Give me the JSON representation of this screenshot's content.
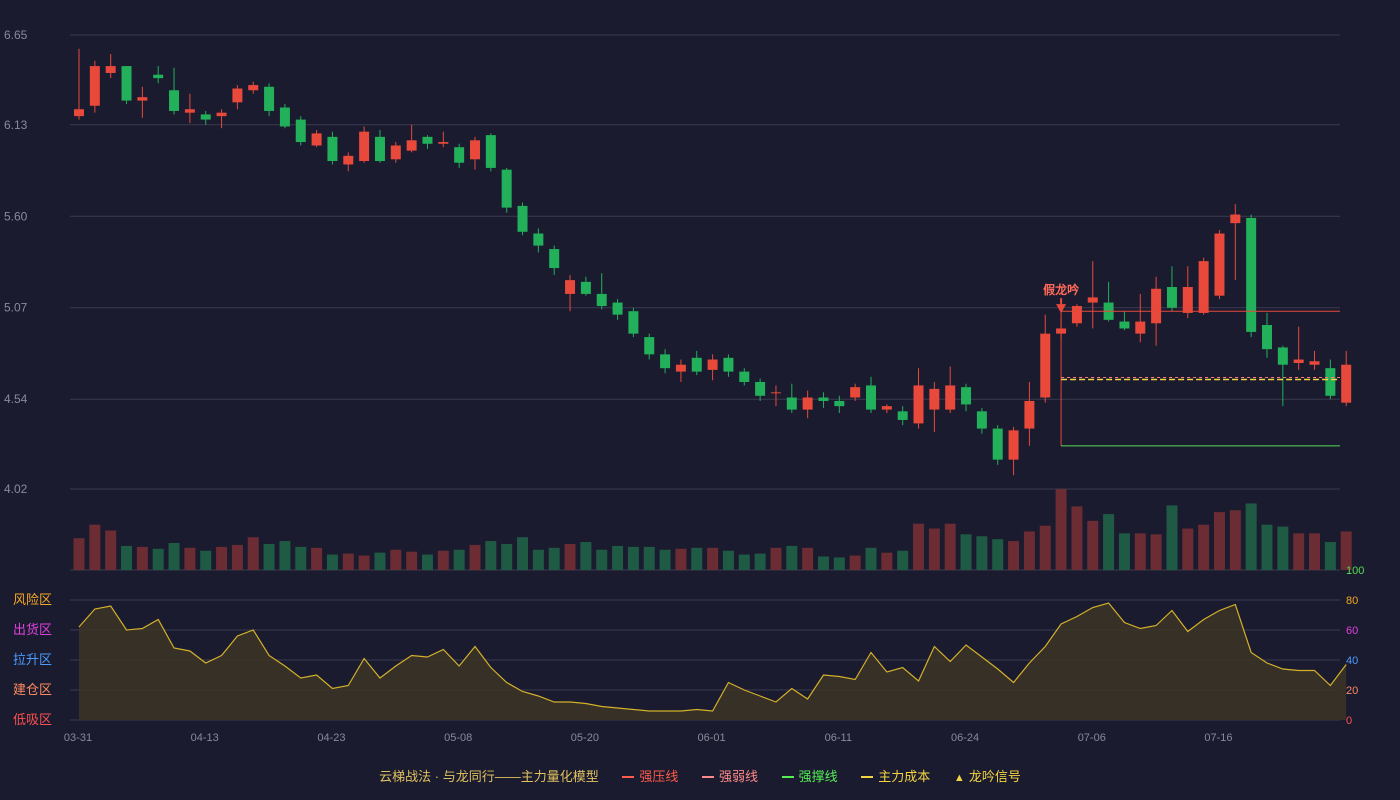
{
  "colors": {
    "background": "#1a1b2e",
    "up": "#e8493a",
    "down": "#22b05a",
    "up_volume": "#6b2c34",
    "down_volume": "#1f5a45",
    "grid": "#3a3b50",
    "axis_text": "#8a8a9a",
    "pressure_line": "#e8493a",
    "weak_line": "#ff7a7a",
    "support_line": "#55dd55",
    "cost_line": "#f5d442",
    "osc_line": "#d4b02a",
    "osc_fill": "#3a3326"
  },
  "chart_data": [
    {
      "type": "candlestick",
      "name": "price",
      "y_ticks": [
        "6.65",
        "6.13",
        "5.60",
        "5.07",
        "4.54",
        "4.02"
      ],
      "ylim": [
        4.02,
        6.65
      ],
      "x_labels": [
        "03-31",
        "04-13",
        "04-23",
        "05-08",
        "05-20",
        "06-01",
        "06-11",
        "06-24",
        "07-06",
        "07-16"
      ],
      "x_label_index": [
        0,
        8,
        16,
        24,
        32,
        40,
        48,
        56,
        64,
        72
      ],
      "ohlc": [
        [
          6.18,
          6.22,
          6.16,
          6.57
        ],
        [
          6.24,
          6.47,
          6.2,
          6.5
        ],
        [
          6.43,
          6.47,
          6.4,
          6.54
        ],
        [
          6.47,
          6.27,
          6.25,
          6.47
        ],
        [
          6.27,
          6.29,
          6.17,
          6.35
        ],
        [
          6.42,
          6.4,
          6.37,
          6.47
        ],
        [
          6.33,
          6.21,
          6.19,
          6.46
        ],
        [
          6.2,
          6.22,
          6.14,
          6.31
        ],
        [
          6.19,
          6.16,
          6.13,
          6.21
        ],
        [
          6.18,
          6.2,
          6.11,
          6.22
        ],
        [
          6.26,
          6.34,
          6.22,
          6.36
        ],
        [
          6.33,
          6.36,
          6.31,
          6.38
        ],
        [
          6.35,
          6.21,
          6.18,
          6.37
        ],
        [
          6.23,
          6.12,
          6.11,
          6.25
        ],
        [
          6.16,
          6.03,
          6.01,
          6.18
        ],
        [
          6.01,
          6.08,
          6.0,
          6.1
        ],
        [
          6.06,
          5.92,
          5.9,
          6.09
        ],
        [
          5.9,
          5.95,
          5.86,
          5.97
        ],
        [
          5.92,
          6.09,
          5.91,
          6.12
        ],
        [
          6.06,
          5.92,
          5.91,
          6.1
        ],
        [
          5.93,
          6.01,
          5.91,
          6.03
        ],
        [
          5.98,
          6.04,
          5.97,
          6.13
        ],
        [
          6.06,
          6.02,
          5.99,
          6.07
        ],
        [
          6.02,
          6.03,
          6.0,
          6.09
        ],
        [
          6.0,
          5.91,
          5.88,
          6.02
        ],
        [
          5.93,
          6.04,
          5.87,
          6.06
        ],
        [
          6.07,
          5.88,
          5.86,
          6.08
        ],
        [
          5.87,
          5.65,
          5.62,
          5.88
        ],
        [
          5.66,
          5.51,
          5.49,
          5.68
        ],
        [
          5.5,
          5.43,
          5.39,
          5.53
        ],
        [
          5.41,
          5.3,
          5.26,
          5.43
        ],
        [
          5.15,
          5.23,
          5.05,
          5.26
        ],
        [
          5.22,
          5.15,
          5.14,
          5.25
        ],
        [
          5.15,
          5.08,
          5.06,
          5.27
        ],
        [
          5.1,
          5.03,
          5.0,
          5.12
        ],
        [
          5.05,
          4.92,
          4.9,
          5.07
        ],
        [
          4.9,
          4.8,
          4.77,
          4.92
        ],
        [
          4.8,
          4.72,
          4.69,
          4.83
        ],
        [
          4.7,
          4.74,
          4.64,
          4.77
        ],
        [
          4.78,
          4.7,
          4.68,
          4.82
        ],
        [
          4.71,
          4.77,
          4.65,
          4.8
        ],
        [
          4.78,
          4.7,
          4.67,
          4.8
        ],
        [
          4.7,
          4.64,
          4.62,
          4.72
        ],
        [
          4.64,
          4.56,
          4.53,
          4.66
        ],
        [
          4.58,
          4.58,
          4.5,
          4.62
        ],
        [
          4.55,
          4.48,
          4.46,
          4.63
        ],
        [
          4.48,
          4.55,
          4.43,
          4.59
        ],
        [
          4.55,
          4.53,
          4.49,
          4.58
        ],
        [
          4.53,
          4.5,
          4.46,
          4.56
        ],
        [
          4.55,
          4.61,
          4.53,
          4.63
        ],
        [
          4.62,
          4.48,
          4.46,
          4.67
        ],
        [
          4.48,
          4.5,
          4.46,
          4.51
        ],
        [
          4.47,
          4.42,
          4.39,
          4.5
        ],
        [
          4.4,
          4.62,
          4.37,
          4.72
        ],
        [
          4.48,
          4.6,
          4.35,
          4.64
        ],
        [
          4.48,
          4.62,
          4.46,
          4.73
        ],
        [
          4.61,
          4.51,
          4.47,
          4.63
        ],
        [
          4.47,
          4.37,
          4.34,
          4.49
        ],
        [
          4.37,
          4.19,
          4.16,
          4.39
        ],
        [
          4.19,
          4.36,
          4.1,
          4.38
        ],
        [
          4.37,
          4.53,
          4.27,
          4.64
        ],
        [
          4.55,
          4.92,
          4.52,
          5.03
        ],
        [
          4.92,
          4.95,
          4.89,
          5.01
        ],
        [
          4.98,
          5.08,
          4.96,
          5.09
        ],
        [
          5.1,
          5.13,
          4.95,
          5.34
        ],
        [
          5.1,
          5.0,
          4.99,
          5.22
        ],
        [
          4.99,
          4.95,
          4.94,
          5.05
        ],
        [
          4.92,
          4.99,
          4.87,
          5.15
        ],
        [
          4.98,
          5.18,
          4.85,
          5.25
        ],
        [
          5.19,
          5.07,
          5.05,
          5.31
        ],
        [
          5.04,
          5.19,
          5.01,
          5.31
        ],
        [
          5.04,
          5.34,
          5.03,
          5.36
        ],
        [
          5.14,
          5.5,
          5.12,
          5.52
        ],
        [
          5.56,
          5.61,
          5.23,
          5.67
        ],
        [
          5.59,
          4.93,
          4.9,
          5.61
        ],
        [
          4.97,
          4.83,
          4.78,
          5.04
        ],
        [
          4.84,
          4.74,
          4.5,
          4.85
        ],
        [
          4.75,
          4.77,
          4.71,
          4.96
        ],
        [
          4.74,
          4.76,
          4.71,
          4.82
        ],
        [
          4.72,
          4.56,
          4.54,
          4.77
        ],
        [
          4.52,
          4.74,
          4.5,
          4.82
        ]
      ],
      "volume": [
        33,
        47,
        41,
        25,
        24,
        22,
        28,
        23,
        20,
        24,
        26,
        34,
        27,
        30,
        24,
        23,
        16,
        17,
        15,
        18,
        21,
        19,
        16,
        20,
        21,
        26,
        30,
        27,
        34,
        21,
        23,
        27,
        29,
        21,
        25,
        24,
        24,
        21,
        22,
        23,
        23,
        20,
        16,
        17,
        23,
        25,
        23,
        14,
        13,
        15,
        23,
        18,
        20,
        48,
        43,
        48,
        37,
        35,
        32,
        30,
        40,
        46,
        84,
        66,
        51,
        58,
        38,
        38,
        37,
        67,
        43,
        47,
        60,
        62,
        69,
        47,
        45,
        38,
        38,
        29,
        40
      ],
      "volume_max": 84,
      "lines": {
        "pressure": {
          "value": 5.05,
          "from_index": 62
        },
        "support": {
          "value": 4.27,
          "from_index": 62
        },
        "cost": {
          "value": 4.66,
          "from_index": 62
        },
        "weak": {
          "value": 4.66,
          "from_index": 62
        }
      },
      "signal": {
        "index": 62,
        "label": "假龙吟"
      }
    },
    {
      "type": "area",
      "name": "oscillator",
      "y_ticks": [
        "100",
        "80",
        "60",
        "40",
        "20",
        "0"
      ],
      "y_tick_colors": [
        "#55dd55",
        "#f5a623",
        "#e040e0",
        "#4a9cff",
        "#ff8a60",
        "#ff5050"
      ],
      "zones": [
        "风险区",
        "出货区",
        "拉升区",
        "建仓区",
        "低吸区"
      ],
      "zone_colors": [
        "#f5a623",
        "#e040e0",
        "#4a9cff",
        "#ff8a60",
        "#ff5050"
      ],
      "ylim": [
        0,
        100
      ],
      "values": [
        62,
        74,
        76,
        60,
        61,
        67,
        48,
        46,
        38,
        43,
        56,
        60,
        43,
        36,
        28,
        30,
        21,
        23,
        41,
        28,
        36,
        43,
        42,
        47,
        36,
        49,
        35,
        25,
        19,
        16,
        12,
        12,
        11,
        9,
        8,
        7,
        6,
        6,
        6,
        7,
        6,
        25,
        20,
        16,
        12,
        21,
        14,
        30,
        29,
        27,
        45,
        32,
        35,
        26,
        49,
        39,
        50,
        42,
        34,
        25,
        38,
        49,
        64,
        69,
        75,
        78,
        65,
        61,
        63,
        73,
        59,
        67,
        73,
        77,
        45,
        38,
        34,
        33,
        33,
        23,
        37
      ]
    }
  ],
  "legend": {
    "title": "云梯战法 · 与龙同行——主力量化模型",
    "items": [
      {
        "label": "强压线",
        "color": "#ff5a4a",
        "style": "solid"
      },
      {
        "label": "强弱线",
        "color": "#ff8a8a",
        "style": "dash"
      },
      {
        "label": "强撑线",
        "color": "#55ee55",
        "style": "solid"
      },
      {
        "label": "主力成本",
        "color": "#f5d442",
        "style": "dash"
      }
    ],
    "signal": {
      "label": "龙吟信号",
      "color": "#f5d442",
      "icon": "triangle-up-icon"
    }
  }
}
